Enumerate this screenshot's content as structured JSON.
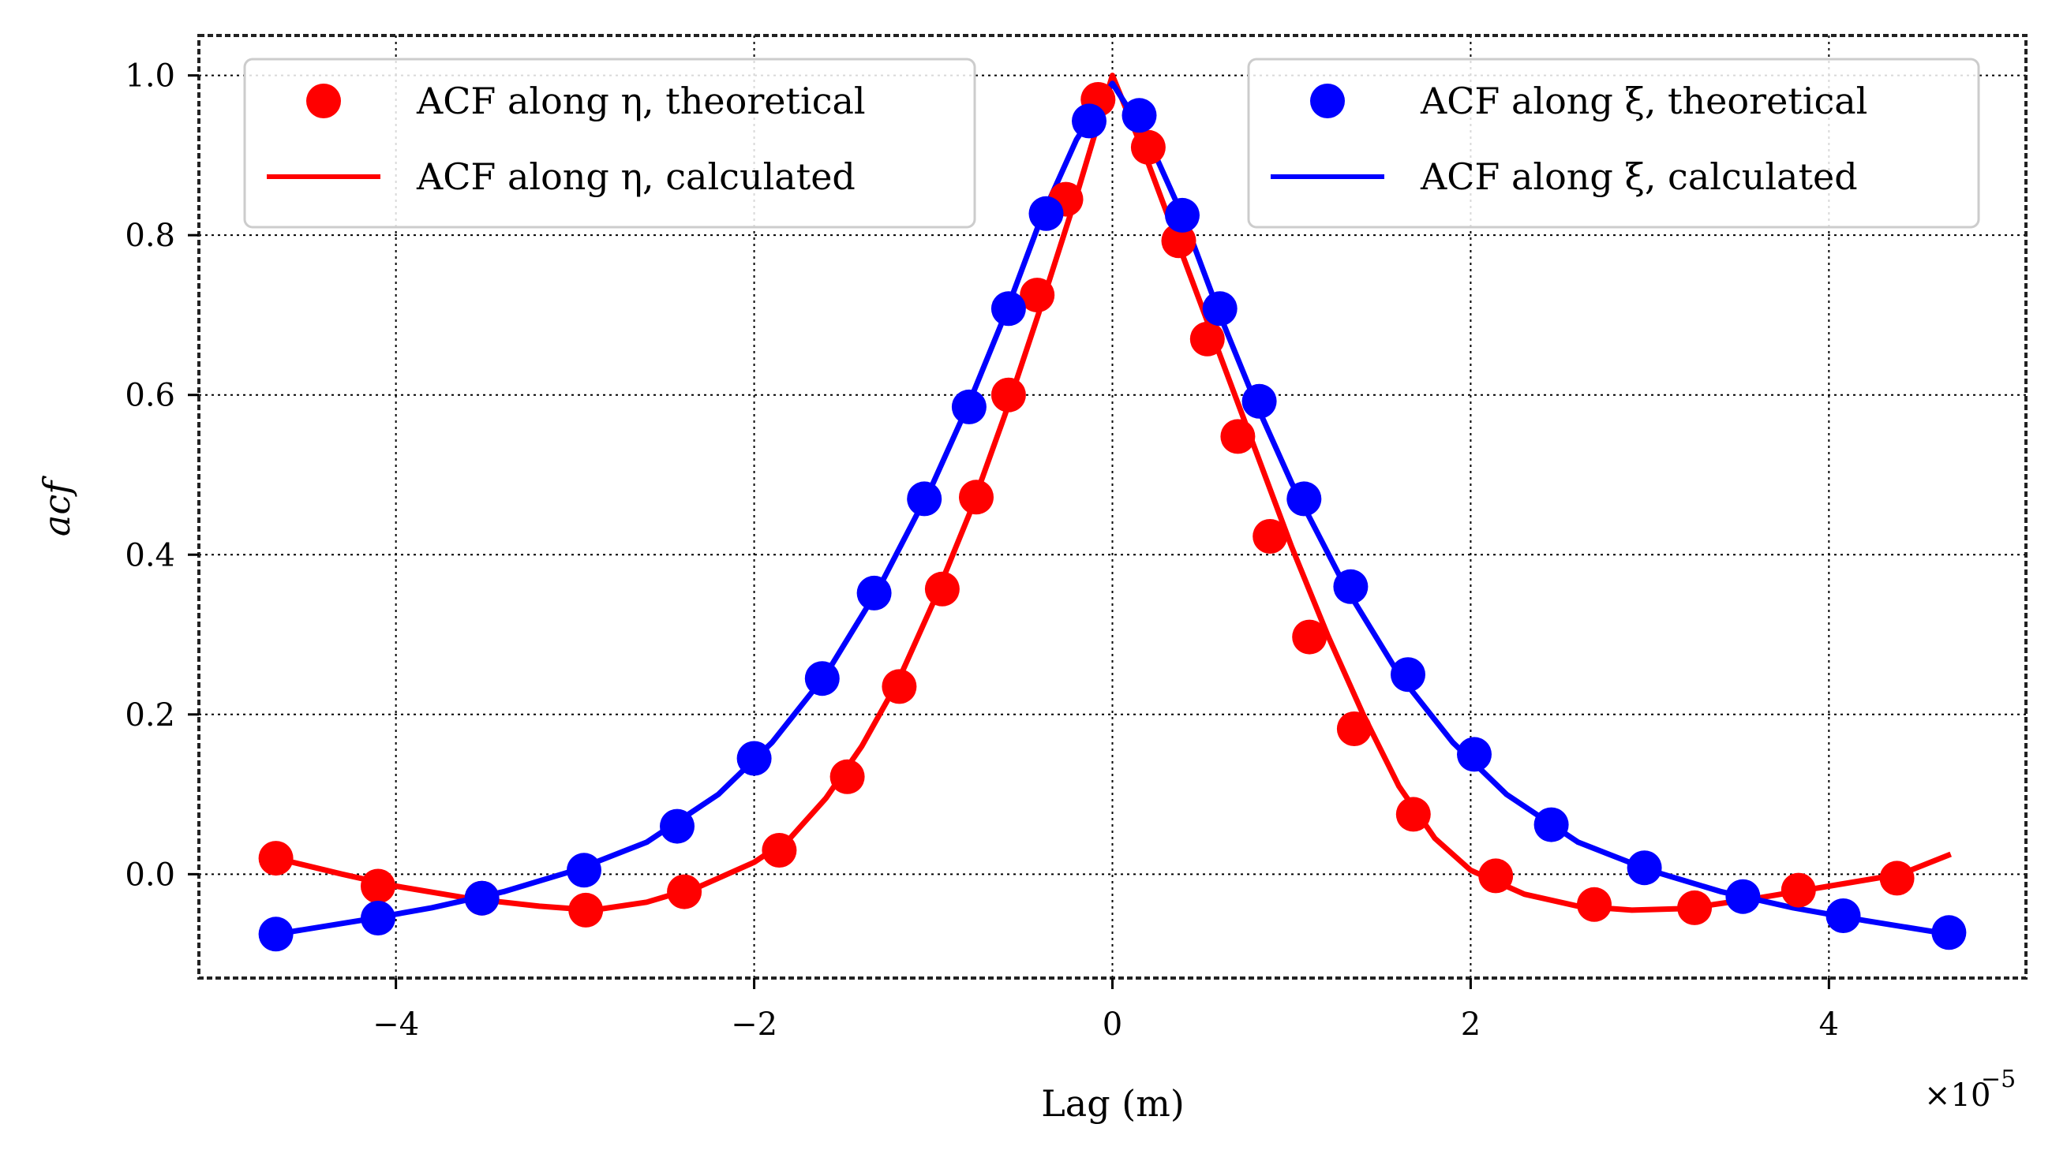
{
  "chart_data": {
    "type": "line",
    "title": "",
    "xlabel": "Lag (m)",
    "ylabel": "acf",
    "x_scale_label": "×10",
    "x_scale_exponent": "−5",
    "xlim": [
      -5.1,
      5.1
    ],
    "ylim": [
      -0.13,
      1.05
    ],
    "xticks": [
      -4,
      -2,
      0,
      2,
      4
    ],
    "xtick_labels": [
      "−4",
      "−2",
      "0",
      "2",
      "4"
    ],
    "yticks": [
      0.0,
      0.2,
      0.4,
      0.6,
      0.8,
      1.0
    ],
    "ytick_labels": [
      "0.0",
      "0.2",
      "0.4",
      "0.6",
      "0.8",
      "1.0"
    ],
    "grid": true,
    "series": [
      {
        "name": "ACF along η, theoretical",
        "kind": "markers",
        "color": "#ff0000",
        "legend": "top-left",
        "x": [
          -4.67,
          -4.1,
          -3.52,
          -2.94,
          -2.39,
          -1.86,
          -1.48,
          -1.19,
          -0.95,
          -0.76,
          -0.58,
          -0.42,
          -0.26,
          -0.08,
          0.2,
          0.37,
          0.53,
          0.7,
          0.88,
          1.1,
          1.35,
          1.68,
          2.14,
          2.69,
          3.25,
          3.83,
          4.38
        ],
        "y": [
          0.02,
          -0.015,
          -0.03,
          -0.045,
          -0.022,
          0.03,
          0.122,
          0.235,
          0.357,
          0.472,
          0.6,
          0.725,
          0.845,
          0.97,
          0.91,
          0.793,
          0.67,
          0.548,
          0.423,
          0.297,
          0.182,
          0.075,
          -0.002,
          -0.038,
          -0.042,
          -0.02,
          -0.005
        ]
      },
      {
        "name": "ACF along η, calculated",
        "kind": "line",
        "color": "#ff0000",
        "legend": "top-left",
        "x": [
          -4.67,
          -4.3,
          -4.0,
          -3.6,
          -3.2,
          -2.9,
          -2.6,
          -2.3,
          -2.0,
          -1.8,
          -1.6,
          -1.4,
          -1.2,
          -1.0,
          -0.8,
          -0.6,
          -0.4,
          -0.2,
          0.0,
          0.2,
          0.4,
          0.6,
          0.8,
          1.0,
          1.2,
          1.4,
          1.6,
          1.8,
          2.0,
          2.3,
          2.6,
          2.9,
          3.2,
          3.6,
          4.0,
          4.4,
          4.68
        ],
        "y": [
          0.02,
          0.0,
          -0.015,
          -0.03,
          -0.04,
          -0.045,
          -0.035,
          -0.015,
          0.015,
          0.045,
          0.095,
          0.16,
          0.24,
          0.34,
          0.45,
          0.575,
          0.71,
          0.85,
          1.0,
          0.89,
          0.77,
          0.65,
          0.53,
          0.41,
          0.3,
          0.2,
          0.11,
          0.045,
          0.005,
          -0.025,
          -0.04,
          -0.045,
          -0.043,
          -0.03,
          -0.015,
          0.0,
          0.025
        ]
      },
      {
        "name": "ACF along ξ, theoretical",
        "kind": "markers",
        "color": "#0000ff",
        "legend": "top-right",
        "x": [
          -4.67,
          -4.1,
          -3.52,
          -2.95,
          -2.43,
          -2.0,
          -1.62,
          -1.33,
          -1.05,
          -0.8,
          -0.58,
          -0.37,
          -0.13,
          0.15,
          0.39,
          0.6,
          0.82,
          1.07,
          1.33,
          1.65,
          2.02,
          2.45,
          2.97,
          3.52,
          4.08,
          4.67
        ],
        "y": [
          -0.075,
          -0.055,
          -0.03,
          0.005,
          0.06,
          0.145,
          0.245,
          0.352,
          0.47,
          0.585,
          0.708,
          0.827,
          0.943,
          0.95,
          0.825,
          0.708,
          0.592,
          0.47,
          0.36,
          0.25,
          0.15,
          0.062,
          0.008,
          -0.028,
          -0.052,
          -0.073
        ]
      },
      {
        "name": "ACF along ξ, calculated",
        "kind": "line",
        "color": "#0000ff",
        "legend": "top-right",
        "x": [
          -4.67,
          -4.2,
          -3.8,
          -3.4,
          -3.0,
          -2.6,
          -2.2,
          -1.9,
          -1.6,
          -1.3,
          -1.0,
          -0.8,
          -0.6,
          -0.4,
          -0.2,
          0.0,
          0.2,
          0.4,
          0.6,
          0.8,
          1.0,
          1.3,
          1.6,
          1.9,
          2.2,
          2.6,
          3.0,
          3.4,
          3.8,
          4.2,
          4.67
        ],
        "y": [
          -0.075,
          -0.058,
          -0.042,
          -0.022,
          0.005,
          0.04,
          0.1,
          0.165,
          0.25,
          0.36,
          0.49,
          0.59,
          0.7,
          0.82,
          0.92,
          0.99,
          0.92,
          0.82,
          0.7,
          0.59,
          0.49,
          0.36,
          0.25,
          0.165,
          0.1,
          0.04,
          0.005,
          -0.022,
          -0.042,
          -0.058,
          -0.075
        ]
      }
    ]
  }
}
